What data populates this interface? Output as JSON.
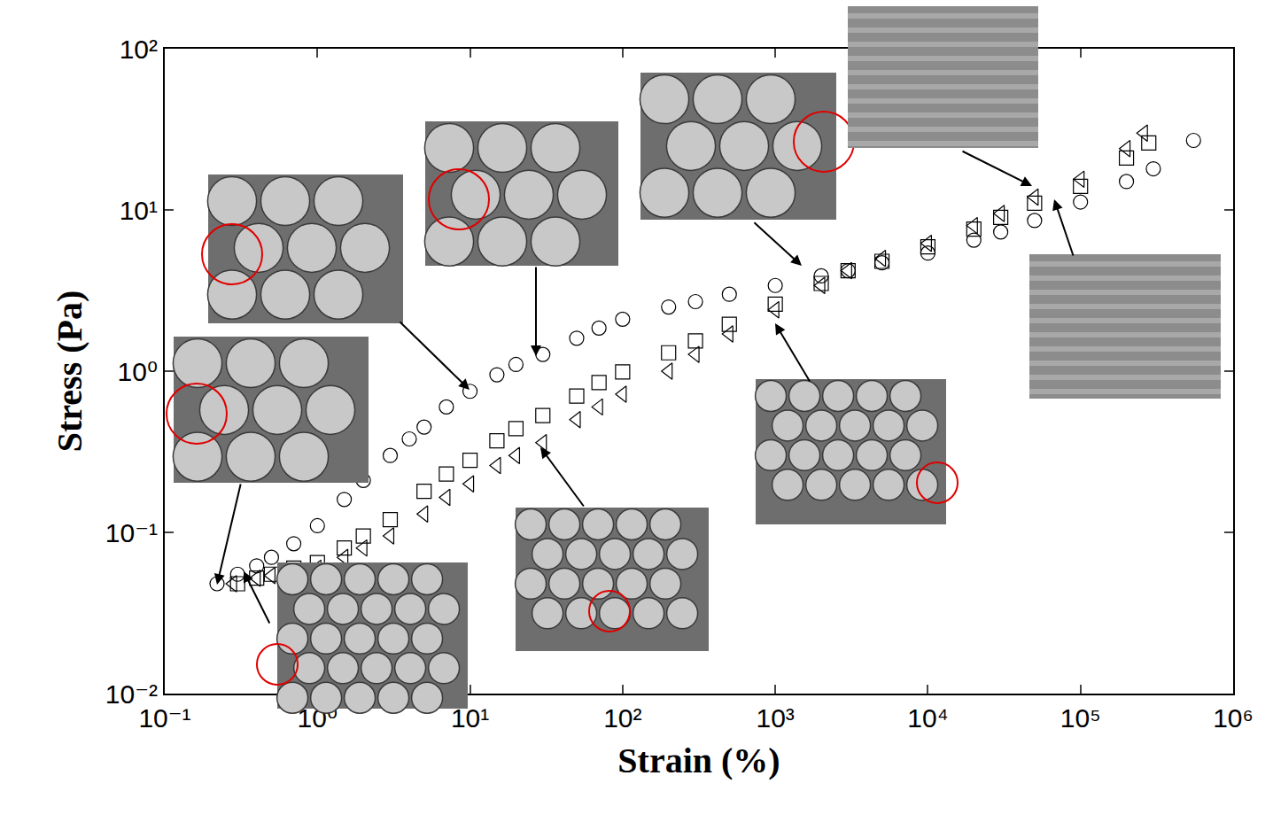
{
  "chart_data": {
    "type": "scatter",
    "x_label": "Strain (%)",
    "y_label": "Stress (Pa)",
    "log": true,
    "grid": false,
    "xlim": [
      0.1,
      1000000
    ],
    "ylim": [
      0.01,
      100
    ],
    "xticks": [
      {
        "value": 0.1,
        "label": "10⁻¹"
      },
      {
        "value": 1,
        "label": "10⁰"
      },
      {
        "value": 10,
        "label": "10¹"
      },
      {
        "value": 100,
        "label": "10²"
      },
      {
        "value": 1000,
        "label": "10³"
      },
      {
        "value": 10000,
        "label": "10⁴"
      },
      {
        "value": 100000,
        "label": "10⁵"
      },
      {
        "value": 1000000,
        "label": "10⁶"
      }
    ],
    "yticks": [
      {
        "value": 0.01,
        "label": "10⁻²"
      },
      {
        "value": 0.1,
        "label": "10⁻¹"
      },
      {
        "value": 1,
        "label": "10⁰"
      },
      {
        "value": 10,
        "label": "10¹"
      },
      {
        "value": 100,
        "label": "10²"
      }
    ],
    "series": [
      {
        "marker": "circle",
        "color": "#000000",
        "x": [
          0.22,
          0.3,
          0.4,
          0.5,
          0.7,
          1,
          1.5,
          2,
          3,
          4,
          5,
          7,
          10,
          15,
          20,
          30,
          50,
          70,
          100,
          200,
          300,
          500,
          1000,
          2000,
          3000,
          5000,
          10000,
          20000,
          30000,
          50000,
          100000,
          200000,
          300000,
          550000
        ],
        "values": [
          0.048,
          0.055,
          0.062,
          0.07,
          0.085,
          0.11,
          0.16,
          0.21,
          0.3,
          0.38,
          0.45,
          0.6,
          0.75,
          0.95,
          1.1,
          1.27,
          1.6,
          1.85,
          2.1,
          2.5,
          2.7,
          3.0,
          3.4,
          3.9,
          4.2,
          4.7,
          5.4,
          6.5,
          7.3,
          8.6,
          11.2,
          15,
          18,
          27
        ]
      },
      {
        "marker": "square",
        "color": "#000000",
        "x": [
          0.3,
          0.4,
          0.5,
          0.7,
          1,
          1.5,
          2,
          3,
          5,
          7,
          10,
          15,
          20,
          30,
          50,
          70,
          100,
          200,
          300,
          500,
          1000,
          2000,
          3000,
          5000,
          10000,
          20000,
          30000,
          50000,
          100000,
          200000,
          280000
        ],
        "values": [
          0.048,
          0.052,
          0.055,
          0.06,
          0.065,
          0.08,
          0.095,
          0.12,
          0.18,
          0.23,
          0.28,
          0.37,
          0.44,
          0.53,
          0.7,
          0.85,
          0.99,
          1.3,
          1.54,
          1.95,
          2.6,
          3.5,
          4.2,
          4.8,
          5.9,
          7.6,
          9,
          11,
          14,
          21,
          26
        ]
      },
      {
        "marker": "triangle-left",
        "color": "#000000",
        "x": [
          0.28,
          0.4,
          0.5,
          0.7,
          1,
          1.5,
          2,
          3,
          5,
          7,
          10,
          15,
          20,
          30,
          50,
          70,
          100,
          200,
          300,
          500,
          1000,
          2000,
          3000,
          5000,
          10000,
          20000,
          30000,
          50000,
          100000,
          200000,
          260000
        ],
        "values": [
          0.048,
          0.052,
          0.054,
          0.057,
          0.06,
          0.07,
          0.08,
          0.095,
          0.13,
          0.165,
          0.2,
          0.26,
          0.3,
          0.36,
          0.5,
          0.6,
          0.72,
          1.0,
          1.27,
          1.7,
          2.4,
          3.4,
          4.2,
          5,
          6.2,
          8,
          9.5,
          12,
          15.5,
          24,
          30
        ]
      }
    ]
  }
}
